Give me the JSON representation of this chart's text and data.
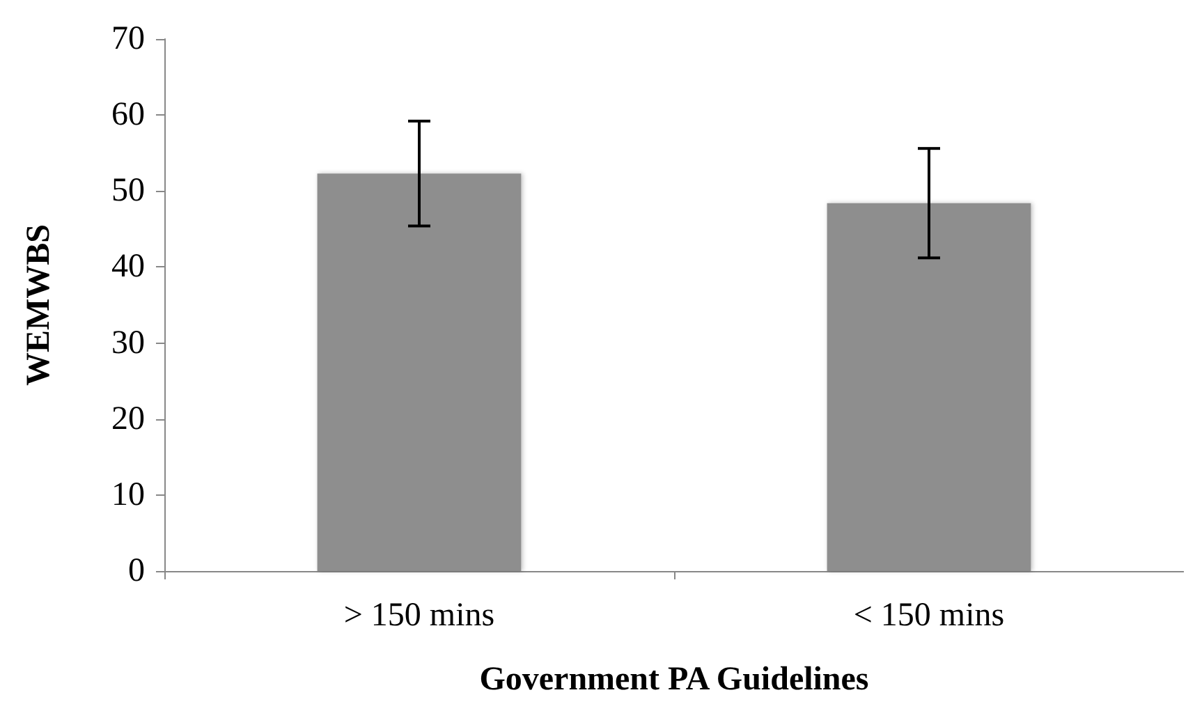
{
  "chart_data": {
    "type": "bar",
    "xlabel": "Government PA Guidelines",
    "ylabel": "WEMWBS",
    "categories": [
      "> 150 mins",
      "< 150 mins"
    ],
    "values": [
      52.3,
      48.4
    ],
    "errors": [
      6.9,
      7.2
    ],
    "color": "#8e8e8e",
    "ylim": [
      0,
      70
    ],
    "yticks": [
      0,
      10,
      20,
      30,
      40,
      50,
      60,
      70
    ],
    "grid": false
  }
}
